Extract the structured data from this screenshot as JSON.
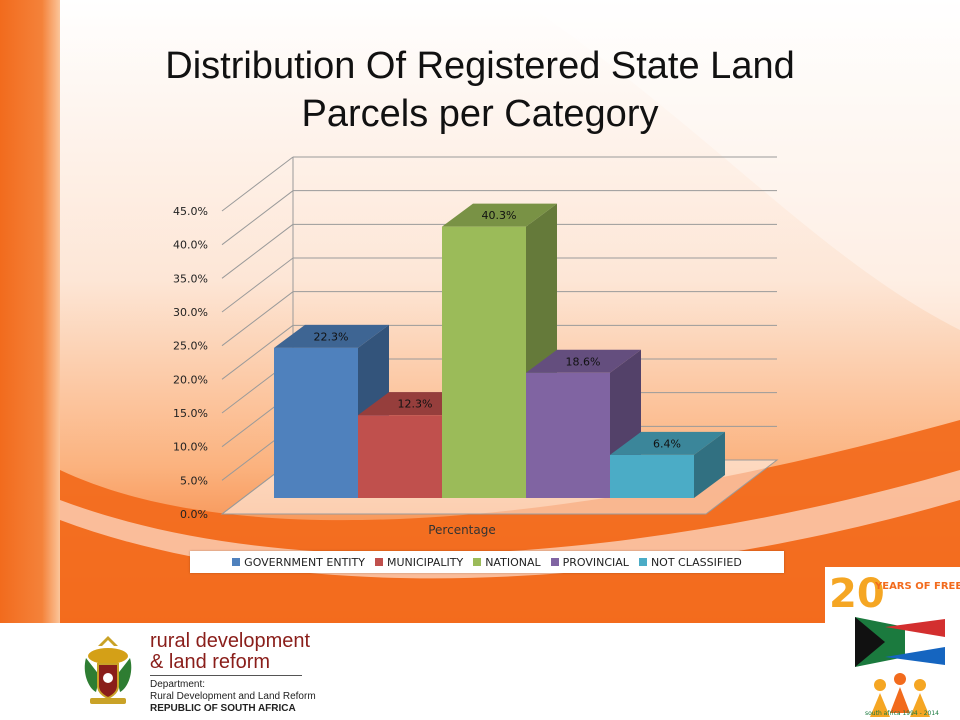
{
  "slide": {
    "title_line1": "Distribution Of Registered State Land",
    "title_line2": "Parcels per Category"
  },
  "colors": {
    "accent_orange": "#f26b1d",
    "government_entity": "#4f81bd",
    "municipality": "#c0504d",
    "national": "#9bbb59",
    "provincial": "#8064a2",
    "not_classified": "#4bacc6"
  },
  "chart_data": {
    "type": "bar",
    "style": "3d-clustered",
    "categories": [
      "Percentage"
    ],
    "xlabel": "Percentage",
    "ylabel": "",
    "ylim": [
      0,
      45
    ],
    "yticks": [
      0,
      5,
      10,
      15,
      20,
      25,
      30,
      35,
      40,
      45
    ],
    "ytick_labels": [
      "0.0%",
      "5.0%",
      "10.0%",
      "15.0%",
      "20.0%",
      "25.0%",
      "30.0%",
      "35.0%",
      "40.0%",
      "45.0%"
    ],
    "grid": true,
    "legend_position": "bottom",
    "series": [
      {
        "name": "GOVERNMENT ENTITY",
        "values": [
          22.3
        ],
        "label": "22.3%",
        "color": "#4f81bd"
      },
      {
        "name": "MUNICIPALITY",
        "values": [
          12.3
        ],
        "label": "12.3%",
        "color": "#c0504d"
      },
      {
        "name": "NATIONAL",
        "values": [
          40.3
        ],
        "label": "40.3%",
        "color": "#9bbb59"
      },
      {
        "name": "PROVINCIAL",
        "values": [
          18.6
        ],
        "label": "18.6%",
        "color": "#8064a2"
      },
      {
        "name": "NOT CLASSIFIED",
        "values": [
          6.4
        ],
        "label": "6.4%",
        "color": "#4bacc6"
      }
    ]
  },
  "footer": {
    "dept_line1": "rural development",
    "dept_line2": "& land reform",
    "department_label": "Department:",
    "department_name": "Rural Development and Land Reform",
    "country": "REPUBLIC OF SOUTH AFRICA",
    "badge_number": "20",
    "badge_text": "YEARS OF FREEDOM",
    "badge_subtext": "south africa 1994 - 2014"
  }
}
